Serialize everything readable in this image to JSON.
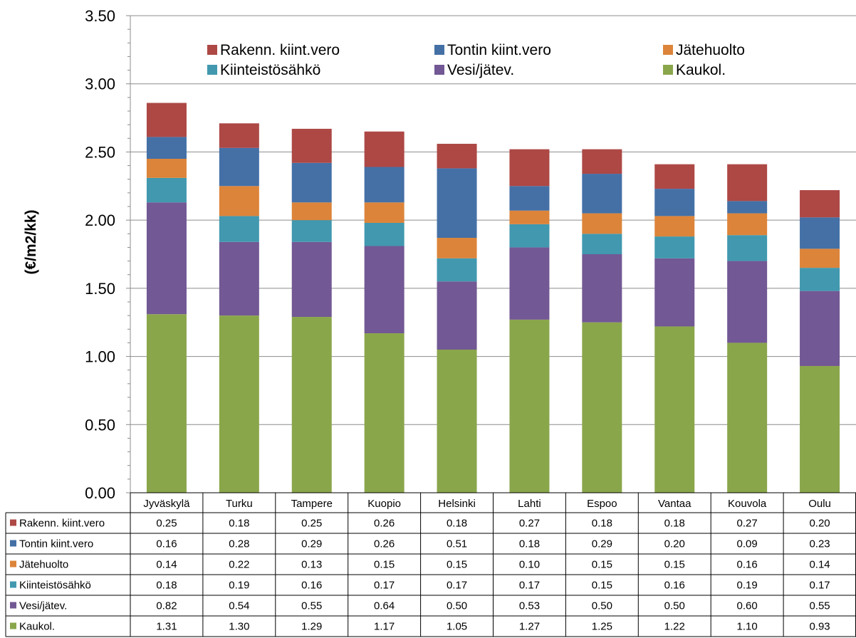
{
  "chart_data": {
    "type": "bar",
    "stacked": true,
    "ylabel": "(€/m2/kk)",
    "ylim": [
      0,
      3.5
    ],
    "ytick_labels": [
      "0.00",
      "0.50",
      "1.00",
      "1.50",
      "2.00",
      "2.50",
      "3.00",
      "3.50"
    ],
    "grid": true,
    "legend_position": "top",
    "data_table": true,
    "categories": [
      "Jyväskylä",
      "Turku",
      "Tampere",
      "Kuopio",
      "Helsinki",
      "Lahti",
      "Espoo",
      "Vantaa",
      "Kouvola",
      "Oulu"
    ],
    "series": [
      {
        "name": "Kaukol.",
        "color": "#8aa64b",
        "values": [
          1.31,
          1.3,
          1.29,
          1.17,
          1.05,
          1.27,
          1.25,
          1.22,
          1.1,
          0.93
        ]
      },
      {
        "name": "Vesi/jätev.",
        "color": "#725894",
        "values": [
          0.82,
          0.54,
          0.55,
          0.64,
          0.5,
          0.53,
          0.5,
          0.5,
          0.6,
          0.55
        ]
      },
      {
        "name": "Kiinteistösähkö",
        "color": "#4198af",
        "values": [
          0.18,
          0.19,
          0.16,
          0.17,
          0.17,
          0.17,
          0.15,
          0.16,
          0.19,
          0.17
        ]
      },
      {
        "name": "Jätehuolto",
        "color": "#dc843a",
        "values": [
          0.14,
          0.22,
          0.13,
          0.15,
          0.15,
          0.1,
          0.15,
          0.15,
          0.16,
          0.14
        ]
      },
      {
        "name": "Tontin kiint.vero",
        "color": "#4470a6",
        "values": [
          0.16,
          0.28,
          0.29,
          0.26,
          0.51,
          0.18,
          0.29,
          0.2,
          0.09,
          0.23
        ]
      },
      {
        "name": "Rakenn. kiint.vero",
        "color": "#ad4845",
        "values": [
          0.25,
          0.18,
          0.25,
          0.26,
          0.18,
          0.27,
          0.18,
          0.18,
          0.27,
          0.2
        ]
      }
    ]
  }
}
